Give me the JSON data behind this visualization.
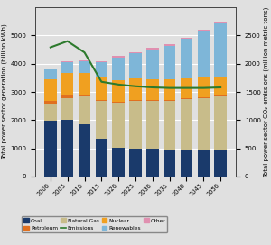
{
  "years": [
    2000,
    2005,
    2010,
    2015,
    2020,
    2025,
    2030,
    2035,
    2040,
    2045,
    2050
  ],
  "coal": [
    1966,
    2013,
    1847,
    1352,
    1025,
    1000,
    990,
    940,
    940,
    930,
    930
  ],
  "natural_gas": [
    601,
    760,
    987,
    1330,
    1600,
    1680,
    1700,
    1750,
    1800,
    1850,
    1900
  ],
  "petroleum": [
    118,
    122,
    37,
    30,
    28,
    28,
    28,
    28,
    28,
    28,
    28
  ],
  "nuclear": [
    754,
    782,
    807,
    797,
    775,
    760,
    740,
    720,
    710,
    700,
    680
  ],
  "renewables": [
    356,
    380,
    408,
    533,
    800,
    900,
    1050,
    1200,
    1400,
    1650,
    1900
  ],
  "other": [
    18,
    20,
    25,
    30,
    35,
    40,
    45,
    50,
    55,
    60,
    65
  ],
  "emissions": [
    2290,
    2400,
    2200,
    1680,
    1630,
    1600,
    1580,
    1570,
    1570,
    1570,
    1580
  ],
  "colors": {
    "coal": "#1a3a6b",
    "natural_gas": "#c8bc8a",
    "petroleum": "#e07020",
    "nuclear": "#f0a020",
    "renewables": "#7eb6d8",
    "other": "#e090b0",
    "emissions": "#2d7a2d"
  },
  "ylabel_left": "Total power sector generation (billion kWh)",
  "ylabel_right": "Total power sector CO₂ emissions (million metric tons)",
  "ylim_left": [
    0,
    6000
  ],
  "ylim_right": [
    0,
    3000
  ],
  "yticks_left": [
    0,
    1000,
    2000,
    3000,
    4000,
    5000
  ],
  "yticks_right": [
    0,
    500,
    1000,
    1500,
    2000,
    2500
  ],
  "background_color": "#e0e0e0",
  "grid_color": "#ffffff"
}
